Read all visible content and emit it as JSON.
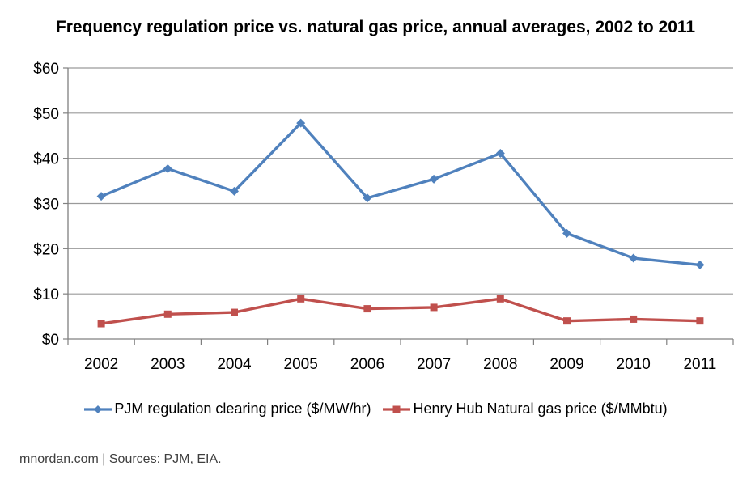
{
  "title": "Frequency regulation price vs. natural gas price, annual averages, 2002 to 2011",
  "footer": "mnordan.com | Sources: PJM, EIA.",
  "colors": {
    "pjm_blue": "#4F81BD",
    "henryhub_red": "#C0504D",
    "gridline": "#9a9a9a",
    "axis": "#808080",
    "label_text": "#000000",
    "footer_text": "#3f3f3f"
  },
  "chart_data": {
    "type": "line",
    "categories": [
      "2002",
      "2003",
      "2004",
      "2005",
      "2006",
      "2007",
      "2008",
      "2009",
      "2010",
      "2011"
    ],
    "series": [
      {
        "name": "PJM regulation clearing price ($/MW/hr)",
        "color": "#4F81BD",
        "marker": "diamond",
        "values": [
          31.6,
          37.7,
          32.7,
          47.8,
          31.2,
          35.4,
          41.1,
          23.4,
          17.9,
          16.4
        ]
      },
      {
        "name": "Henry Hub Natural gas price ($/MMbtu)",
        "color": "#C0504D",
        "marker": "square",
        "values": [
          3.4,
          5.5,
          5.9,
          8.9,
          6.7,
          7.0,
          8.9,
          4.0,
          4.4,
          4.0
        ]
      }
    ],
    "title": "Frequency regulation price vs. natural gas price, annual averages, 2002 to 2011",
    "xlabel": "",
    "ylabel": "",
    "ylim": [
      0,
      60
    ],
    "yticks": [
      "$0",
      "$10",
      "$20",
      "$30",
      "$40",
      "$50",
      "$60"
    ],
    "grid": true,
    "legend_position": "bottom"
  }
}
